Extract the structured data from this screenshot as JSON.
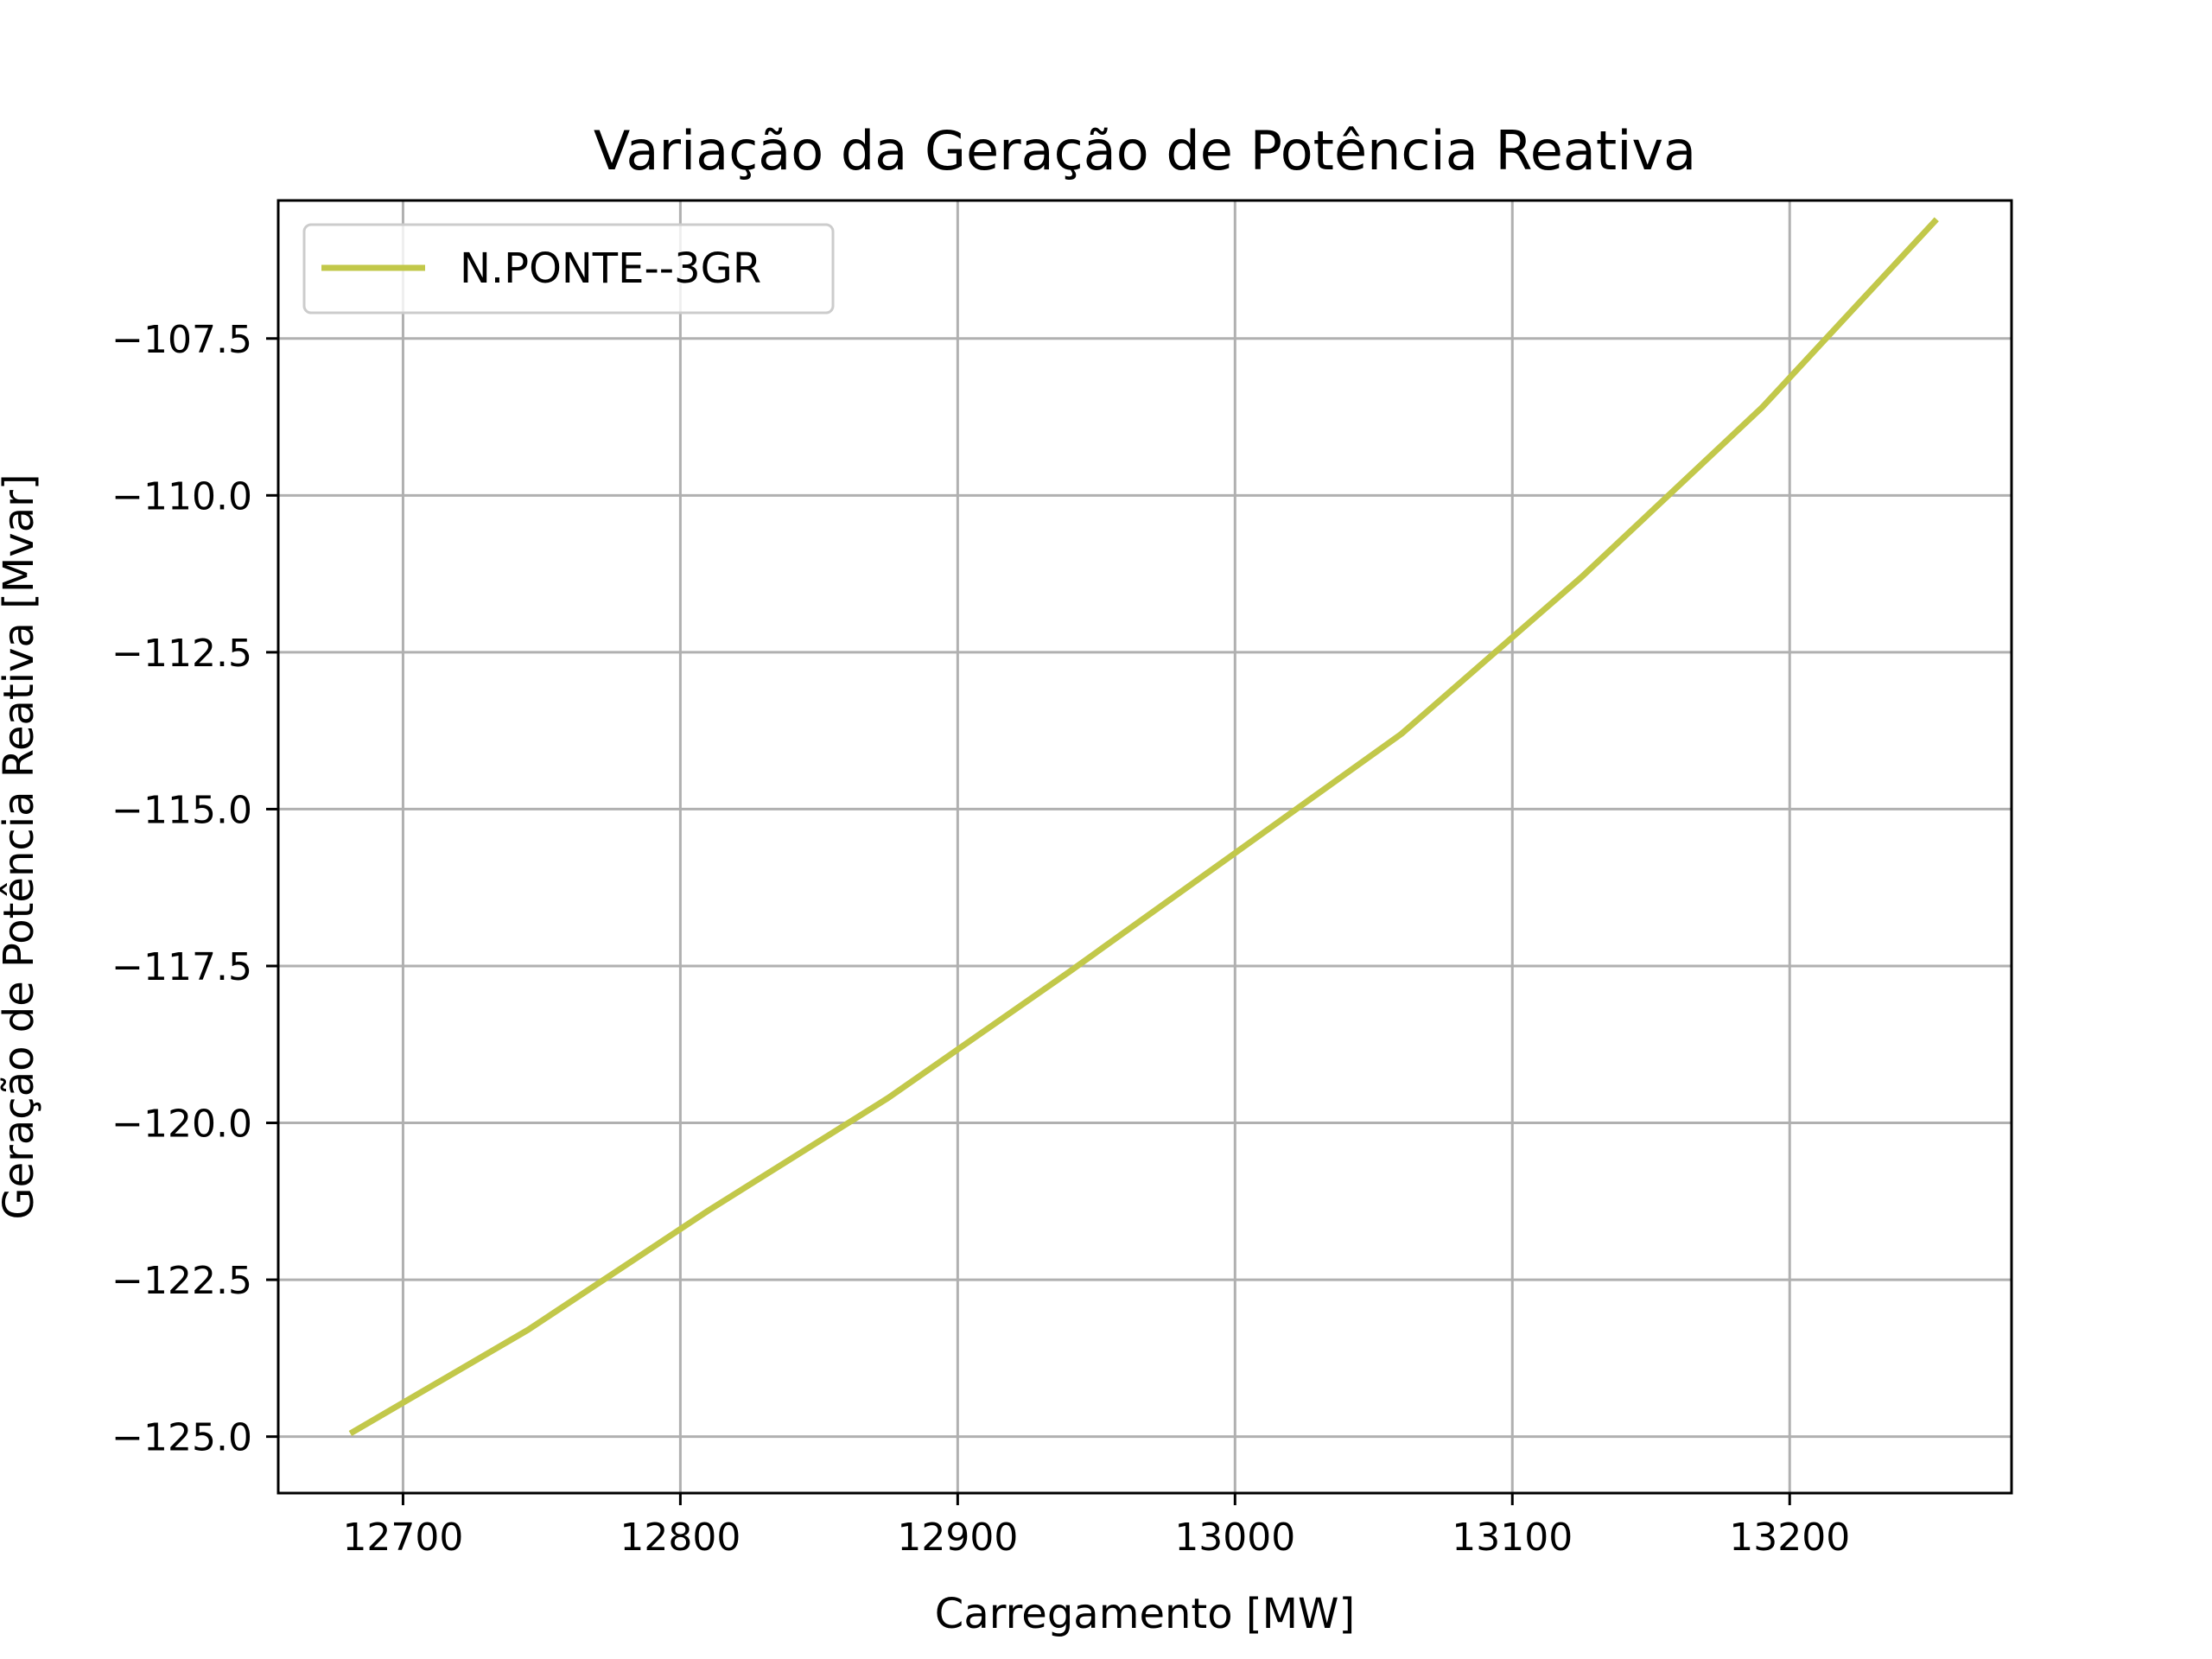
{
  "chart_data": {
    "type": "line",
    "title": "Variação da Geração de Potência Reativa",
    "xlabel": "Carregamento [MW]",
    "ylabel": "Geração de Potência Reativa [Mvar]",
    "xlim": [
      12655,
      13280
    ],
    "ylim": [
      -125.9,
      -105.3
    ],
    "xticks": [
      12700,
      12800,
      12900,
      13000,
      13100,
      13200
    ],
    "yticks": [
      -107.5,
      -110.0,
      -112.5,
      -115.0,
      -117.5,
      -120.0,
      -122.5,
      -125.0
    ],
    "xtick_labels": [
      "12700",
      "12800",
      "12900",
      "13000",
      "13100",
      "13200"
    ],
    "ytick_labels": [
      "−107.5",
      "−110.0",
      "−112.5",
      "−115.0",
      "−117.5",
      "−120.0",
      "−122.5",
      "−125.0"
    ],
    "grid": true,
    "legend_position": "top-left",
    "series": [
      {
        "name": "N.PONTE--3GR",
        "color": "#c2c84a",
        "x": [
          12681,
          12745,
          12810,
          12875,
          12940,
          13000,
          13060,
          13125,
          13190,
          13253
        ],
        "y": [
          -124.95,
          -123.3,
          -121.4,
          -119.6,
          -117.6,
          -115.7,
          -113.8,
          -111.3,
          -108.6,
          -105.6
        ]
      }
    ]
  }
}
